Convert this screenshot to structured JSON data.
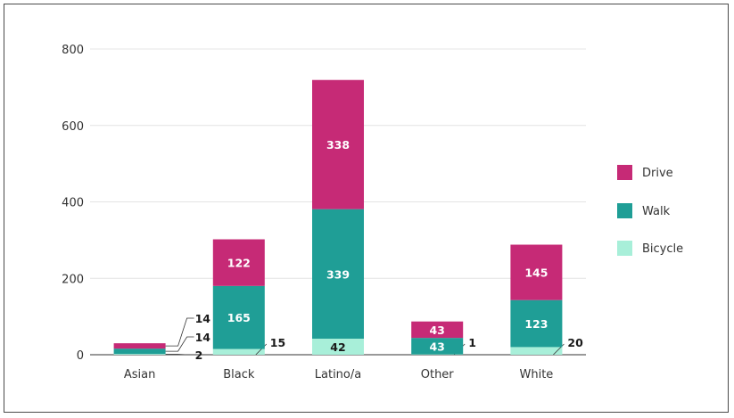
{
  "chart_data": {
    "type": "bar",
    "stacked": true,
    "categories": [
      "Asian",
      "Black",
      "Latino/a",
      "Other",
      "White"
    ],
    "series": [
      {
        "name": "Bicycle",
        "color": "#a8efd9",
        "values": [
          2,
          15,
          42,
          1,
          20
        ]
      },
      {
        "name": "Walk",
        "color": "#1f9e96",
        "values": [
          14,
          165,
          339,
          43,
          123
        ]
      },
      {
        "name": "Drive",
        "color": "#c62a76",
        "values": [
          14,
          122,
          338,
          43,
          145
        ]
      }
    ],
    "y_ticks": [
      0,
      200,
      400,
      600,
      800
    ],
    "ylim": [
      0,
      800
    ],
    "grid": true,
    "legend_position": "right",
    "legend_order": [
      "Drive",
      "Walk",
      "Bicycle"
    ]
  }
}
